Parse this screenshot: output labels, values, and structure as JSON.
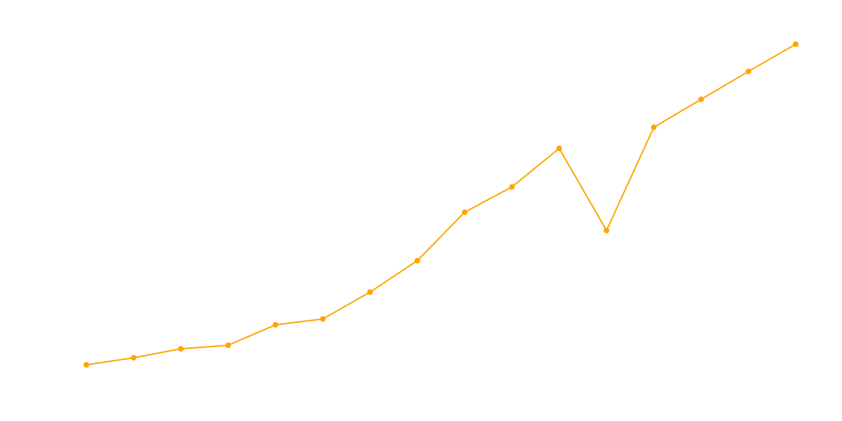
{
  "chart_data": {
    "type": "line",
    "title": "",
    "xlabel": "",
    "ylabel": "",
    "axes_visible": false,
    "grid": false,
    "x": [
      1,
      2,
      3,
      4,
      5,
      6,
      7,
      8,
      9,
      10,
      11,
      12,
      13,
      14,
      15,
      16
    ],
    "xlim": [
      1,
      16
    ],
    "ylim": [
      0,
      1
    ],
    "series": [
      {
        "color": "#FFA500",
        "values": [
          0.0,
          0.022,
          0.05,
          0.061,
          0.125,
          0.143,
          0.227,
          0.325,
          0.476,
          0.555,
          0.675,
          0.419,
          0.741,
          0.828,
          0.915,
          1.0
        ]
      }
    ]
  }
}
